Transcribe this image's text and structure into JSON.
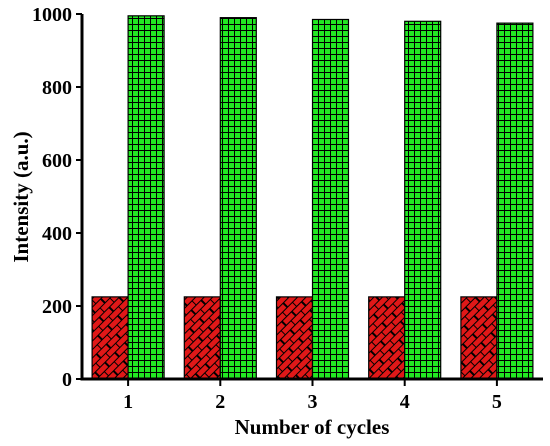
{
  "chart_data": {
    "type": "bar",
    "categories": [
      "1",
      "2",
      "3",
      "4",
      "5"
    ],
    "series": [
      {
        "values": [
          225,
          225,
          225,
          225,
          225
        ],
        "color": "#e01818",
        "pattern": "brick"
      },
      {
        "values": [
          995,
          990,
          985,
          980,
          975
        ],
        "color": "#22e822",
        "pattern": "grid"
      }
    ],
    "xlabel": "Number of cycles",
    "ylabel": "Intensity (a.u.)",
    "ylim": [
      0,
      1000
    ],
    "yticks": [
      "0",
      "200",
      "400",
      "600",
      "800",
      "1000"
    ],
    "grid": false,
    "legend": "none"
  }
}
